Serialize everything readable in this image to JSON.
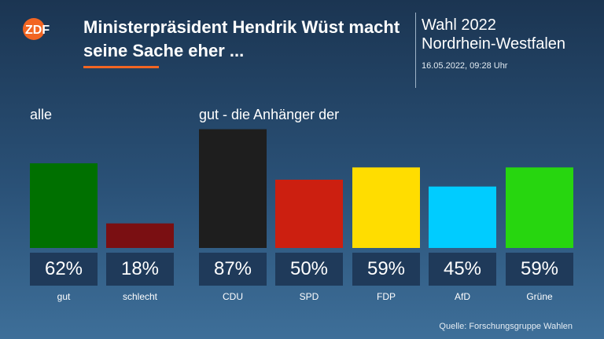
{
  "header": {
    "logo_text": "ZDF",
    "title": "Ministerpräsident Hendrik Wüst macht seine Sache eher ...",
    "election_line1": "Wahl 2022",
    "election_line2": "Nordrhein-Westfalen",
    "timestamp": "16.05.2022, 09:28 Uhr"
  },
  "groups": {
    "all_label": "alle",
    "supporters_label": "gut - die Anhänger der"
  },
  "source": "Quelle: Forschungsgruppe Wahlen",
  "colors": {
    "gut": "#007000",
    "schlecht": "#7a0f12",
    "CDU": "#1e1e1e",
    "SPD": "#cc1f10",
    "FDP": "#ffdd00",
    "AfD": "#00ccff",
    "Grüne": "#27d60f",
    "logo": "#f26522",
    "box": "#1f3a5a"
  },
  "chart_data": {
    "type": "bar",
    "unit": "%",
    "ylim": [
      0,
      100
    ],
    "categories": [
      "gut",
      "schlecht",
      "CDU",
      "SPD",
      "FDP",
      "AfD",
      "Grüne"
    ],
    "values": [
      62,
      18,
      87,
      50,
      59,
      45,
      59
    ],
    "value_labels": [
      "62%",
      "18%",
      "87%",
      "50%",
      "59%",
      "45%",
      "59%"
    ]
  }
}
